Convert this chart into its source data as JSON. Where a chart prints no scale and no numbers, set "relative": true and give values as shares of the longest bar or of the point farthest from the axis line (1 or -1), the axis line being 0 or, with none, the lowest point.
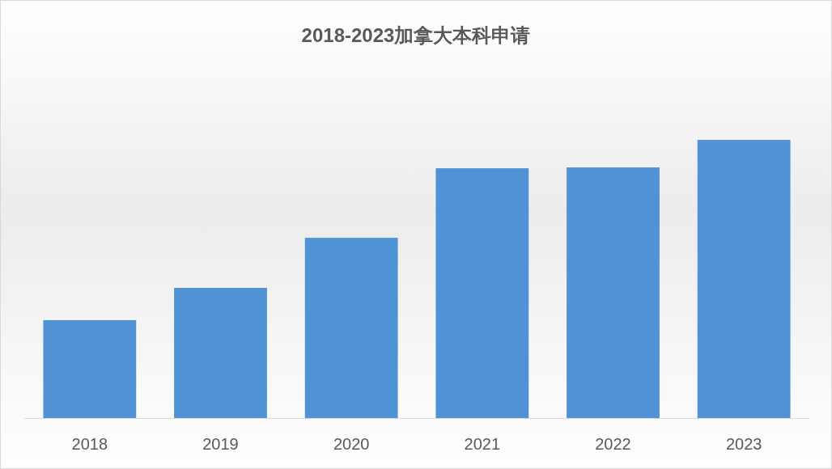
{
  "chart_data": {
    "type": "bar",
    "title": "2018-2023加拿大本科申请",
    "categories": [
      "2018",
      "2019",
      "2020",
      "2021",
      "2022",
      "2023"
    ],
    "values": [
      0.352,
      0.468,
      0.648,
      0.898,
      0.901,
      1
    ],
    "color": "#4f92d6",
    "relative": true
  }
}
